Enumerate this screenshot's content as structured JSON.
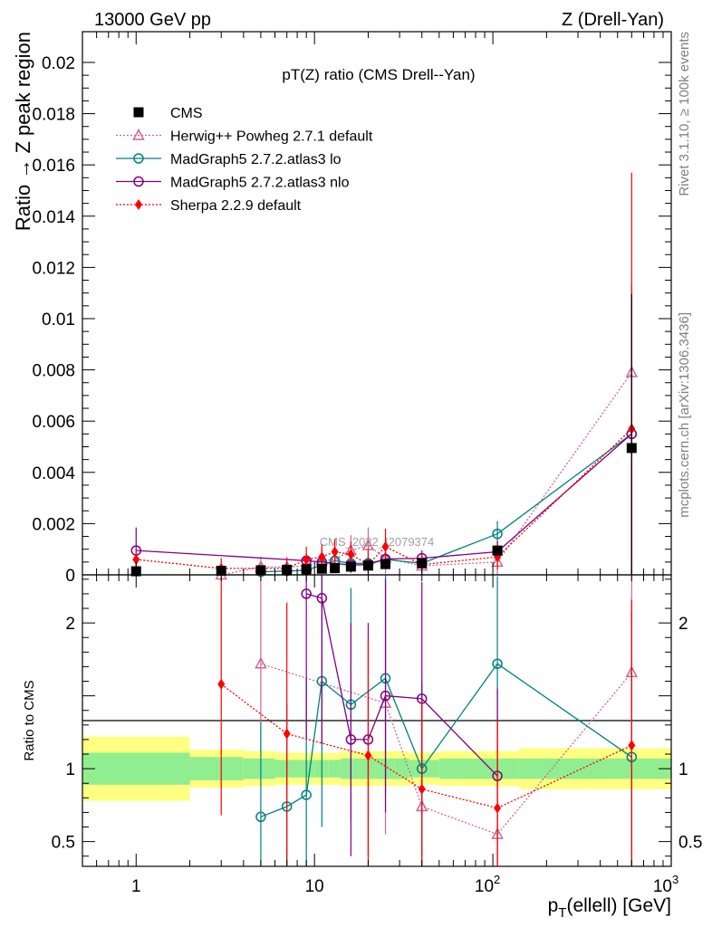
{
  "header": {
    "left_title": "13000 GeV pp",
    "right_title": "Z (Drell-Yan)"
  },
  "side_labels": {
    "rivet": "Rivet 3.1.10, ≥ 100k events",
    "mcplots": "mcplots.cern.ch [arXiv:1306.3436]"
  },
  "watermark": "CMS_2022_I2079374",
  "chart_data": [
    {
      "type": "scatter",
      "title": "pT(Z) ratio (CMS Drell--Yan)",
      "ylabel": "Ratio → Z peak region",
      "xscale": "log",
      "xlim": [
        0.5,
        1000
      ],
      "ylim": [
        0,
        0.0212
      ],
      "yticks": [
        0,
        0.002,
        0.004,
        0.006,
        0.008,
        0.01,
        0.012,
        0.014,
        0.016,
        0.018,
        0.02
      ],
      "ytick_labels": [
        "0",
        "0.002",
        "0.004",
        "0.006",
        "0.008",
        "0.01",
        "0.012",
        "0.014",
        "0.016",
        "0.018",
        "0.02"
      ],
      "legend_position": "top-left",
      "series": [
        {
          "name": "CMS",
          "color": "#000000",
          "marker": "square",
          "line": "none",
          "x": [
            1,
            3,
            5,
            7,
            9,
            11,
            13,
            16,
            20,
            25,
            40,
            106,
            600
          ],
          "y": [
            0.00014,
            0.00016,
            0.00018,
            0.0002,
            0.00022,
            0.00024,
            0.00026,
            0.00032,
            0.00036,
            0.00042,
            0.00045,
            0.00095,
            0.00495
          ],
          "err": [
            3e-05,
            3e-05,
            3e-05,
            3e-05,
            3e-05,
            3e-05,
            3e-05,
            4e-05,
            4e-05,
            5e-05,
            6e-05,
            8e-05,
            0.006
          ]
        },
        {
          "name": "Herwig++ Powheg 2.7.1 default",
          "color": "#cc6699",
          "marker": "triangle",
          "line": "dotted",
          "x": [
            3,
            5,
            7,
            9,
            11,
            13,
            16,
            20,
            25,
            40,
            106,
            600
          ],
          "y": [
            0.0,
            0.00031,
            0.0003,
            0.00035,
            0.00055,
            0.0006,
            0.00095,
            0.00115,
            0.00065,
            0.00035,
            0.0005,
            0.0079
          ],
          "err": [
            0.0003,
            0.0004,
            0.0004,
            0.0004,
            0.0005,
            0.0005,
            0.0006,
            0.0007,
            0.0006,
            0.0004,
            0.0005,
            0.0035
          ]
        },
        {
          "name": "MadGraph5 2.7.2.atlas3 lo",
          "color": "#008080",
          "marker": "circle",
          "line": "solid",
          "x": [
            5,
            7,
            9,
            11,
            13,
            16,
            20,
            25,
            40,
            106,
            600
          ],
          "y": [
            0.00012,
            0.00015,
            0.00018,
            0.00038,
            0.00055,
            0.00045,
            0.00045,
            0.0006,
            0.00045,
            0.0016,
            0.0055
          ],
          "err": [
            0.0002,
            0.0002,
            0.0002,
            0.0003,
            0.0003,
            0.0003,
            0.0003,
            0.0003,
            0.0003,
            0.0005,
            0.0055
          ]
        },
        {
          "name": "MadGraph5 2.7.2.atlas3 nlo",
          "color": "#800080",
          "marker": "circle",
          "line": "solid",
          "x": [
            1,
            9,
            11,
            16,
            20,
            25,
            40,
            106,
            600
          ],
          "y": [
            0.00095,
            0.00055,
            0.0005,
            0.00038,
            0.0004,
            0.00062,
            0.00065,
            0.0009,
            0.0055
          ],
          "err": [
            0.0009,
            0.0003,
            0.0003,
            0.0003,
            0.0003,
            0.0003,
            0.0003,
            0.0004,
            0.0055
          ]
        },
        {
          "name": "Sherpa 2.2.9 default",
          "color": "#ff0000",
          "marker": "diamond",
          "line": "dotted",
          "x": [
            1,
            3,
            7,
            9,
            11,
            13,
            16,
            20,
            25,
            40,
            106,
            600
          ],
          "y": [
            0.0006,
            0.00025,
            0.00025,
            0.0006,
            0.0007,
            0.0009,
            0.0008,
            0.0004,
            0.0011,
            0.0004,
            0.0007,
            0.0057
          ],
          "err": [
            0.0004,
            0.0004,
            0.0004,
            0.0005,
            0.0005,
            0.0005,
            0.0005,
            0.0006,
            0.0007,
            0.0004,
            0.0005,
            0.01
          ]
        }
      ]
    },
    {
      "type": "scatter",
      "ylabel": "Ratio to CMS",
      "xlabel": "p_T(ellell) [GeV]",
      "xscale": "log",
      "xlim": [
        0.5,
        1000
      ],
      "ylim": [
        0.33,
        2.33
      ],
      "xtick_labels": [
        "1",
        "10",
        "10^2",
        "10^3"
      ],
      "yticks": [
        0.5,
        1,
        1.5,
        2
      ],
      "ytick_labels": [
        "0.5",
        "1",
        "",
        "2"
      ],
      "reference_line": 1,
      "bands": {
        "edges": [
          0.5,
          2,
          4,
          6,
          8,
          10,
          12,
          14,
          18,
          22,
          28,
          34,
          50,
          80,
          140,
          1000
        ],
        "inner_lo": [
          0.89,
          0.92,
          0.93,
          0.94,
          0.94,
          0.94,
          0.94,
          0.93,
          0.93,
          0.93,
          0.93,
          0.94,
          0.93,
          0.93,
          0.93
        ],
        "inner_hi": [
          1.11,
          1.08,
          1.07,
          1.06,
          1.06,
          1.06,
          1.06,
          1.07,
          1.07,
          1.07,
          1.07,
          1.06,
          1.07,
          1.07,
          1.07
        ],
        "outer_lo": [
          0.78,
          0.87,
          0.88,
          0.89,
          0.89,
          0.89,
          0.89,
          0.88,
          0.88,
          0.88,
          0.88,
          0.89,
          0.88,
          0.88,
          0.86
        ],
        "outer_hi": [
          1.22,
          1.13,
          1.12,
          1.11,
          1.11,
          1.11,
          1.11,
          1.12,
          1.12,
          1.12,
          1.12,
          1.11,
          1.12,
          1.12,
          1.14
        ],
        "inner_color": "#90ee90",
        "outer_color": "#ffff80"
      },
      "series": [
        {
          "name": "Herwig++ Powheg 2.7.1 default",
          "color": "#cc6699",
          "marker": "triangle",
          "line": "dotted",
          "x": [
            5,
            25,
            40,
            106,
            600
          ],
          "y": [
            1.72,
            1.45,
            0.74,
            0.55,
            1.66
          ],
          "err": [
            0.6,
            0.9,
            0.6,
            0.5,
            0.9
          ]
        },
        {
          "name": "MadGraph5 2.7.2.atlas3 lo",
          "color": "#008080",
          "marker": "circle",
          "line": "solid",
          "x": [
            5,
            7,
            9,
            11,
            16,
            25,
            40,
            106,
            600
          ],
          "y": [
            0.67,
            0.74,
            0.82,
            1.6,
            1.44,
            1.62,
            1.0,
            1.72,
            1.08
          ],
          "err": [
            0.65,
            0.7,
            0.8,
            1.0,
            0.8,
            0.8,
            0.6,
            0.6,
            1.0
          ]
        },
        {
          "name": "MadGraph5 2.7.2.atlas3 nlo",
          "color": "#800080",
          "marker": "circle",
          "line": "solid",
          "x": [
            9,
            11,
            16,
            20,
            25,
            40,
            106
          ],
          "y": [
            2.2,
            2.17,
            1.2,
            1.2,
            1.5,
            1.48,
            0.95
          ],
          "err": [
            1.0,
            1.0,
            0.8,
            0.8,
            0.8,
            0.8,
            0.6
          ]
        },
        {
          "name": "Sherpa 2.2.9 default",
          "color": "#ff0000",
          "marker": "diamond",
          "line": "dotted",
          "x": [
            3,
            7,
            20,
            40,
            106,
            600
          ],
          "y": [
            1.58,
            1.24,
            1.09,
            0.86,
            0.73,
            1.16
          ],
          "err": [
            0.9,
            0.9,
            0.8,
            0.6,
            0.6,
            1.0
          ]
        }
      ]
    }
  ]
}
